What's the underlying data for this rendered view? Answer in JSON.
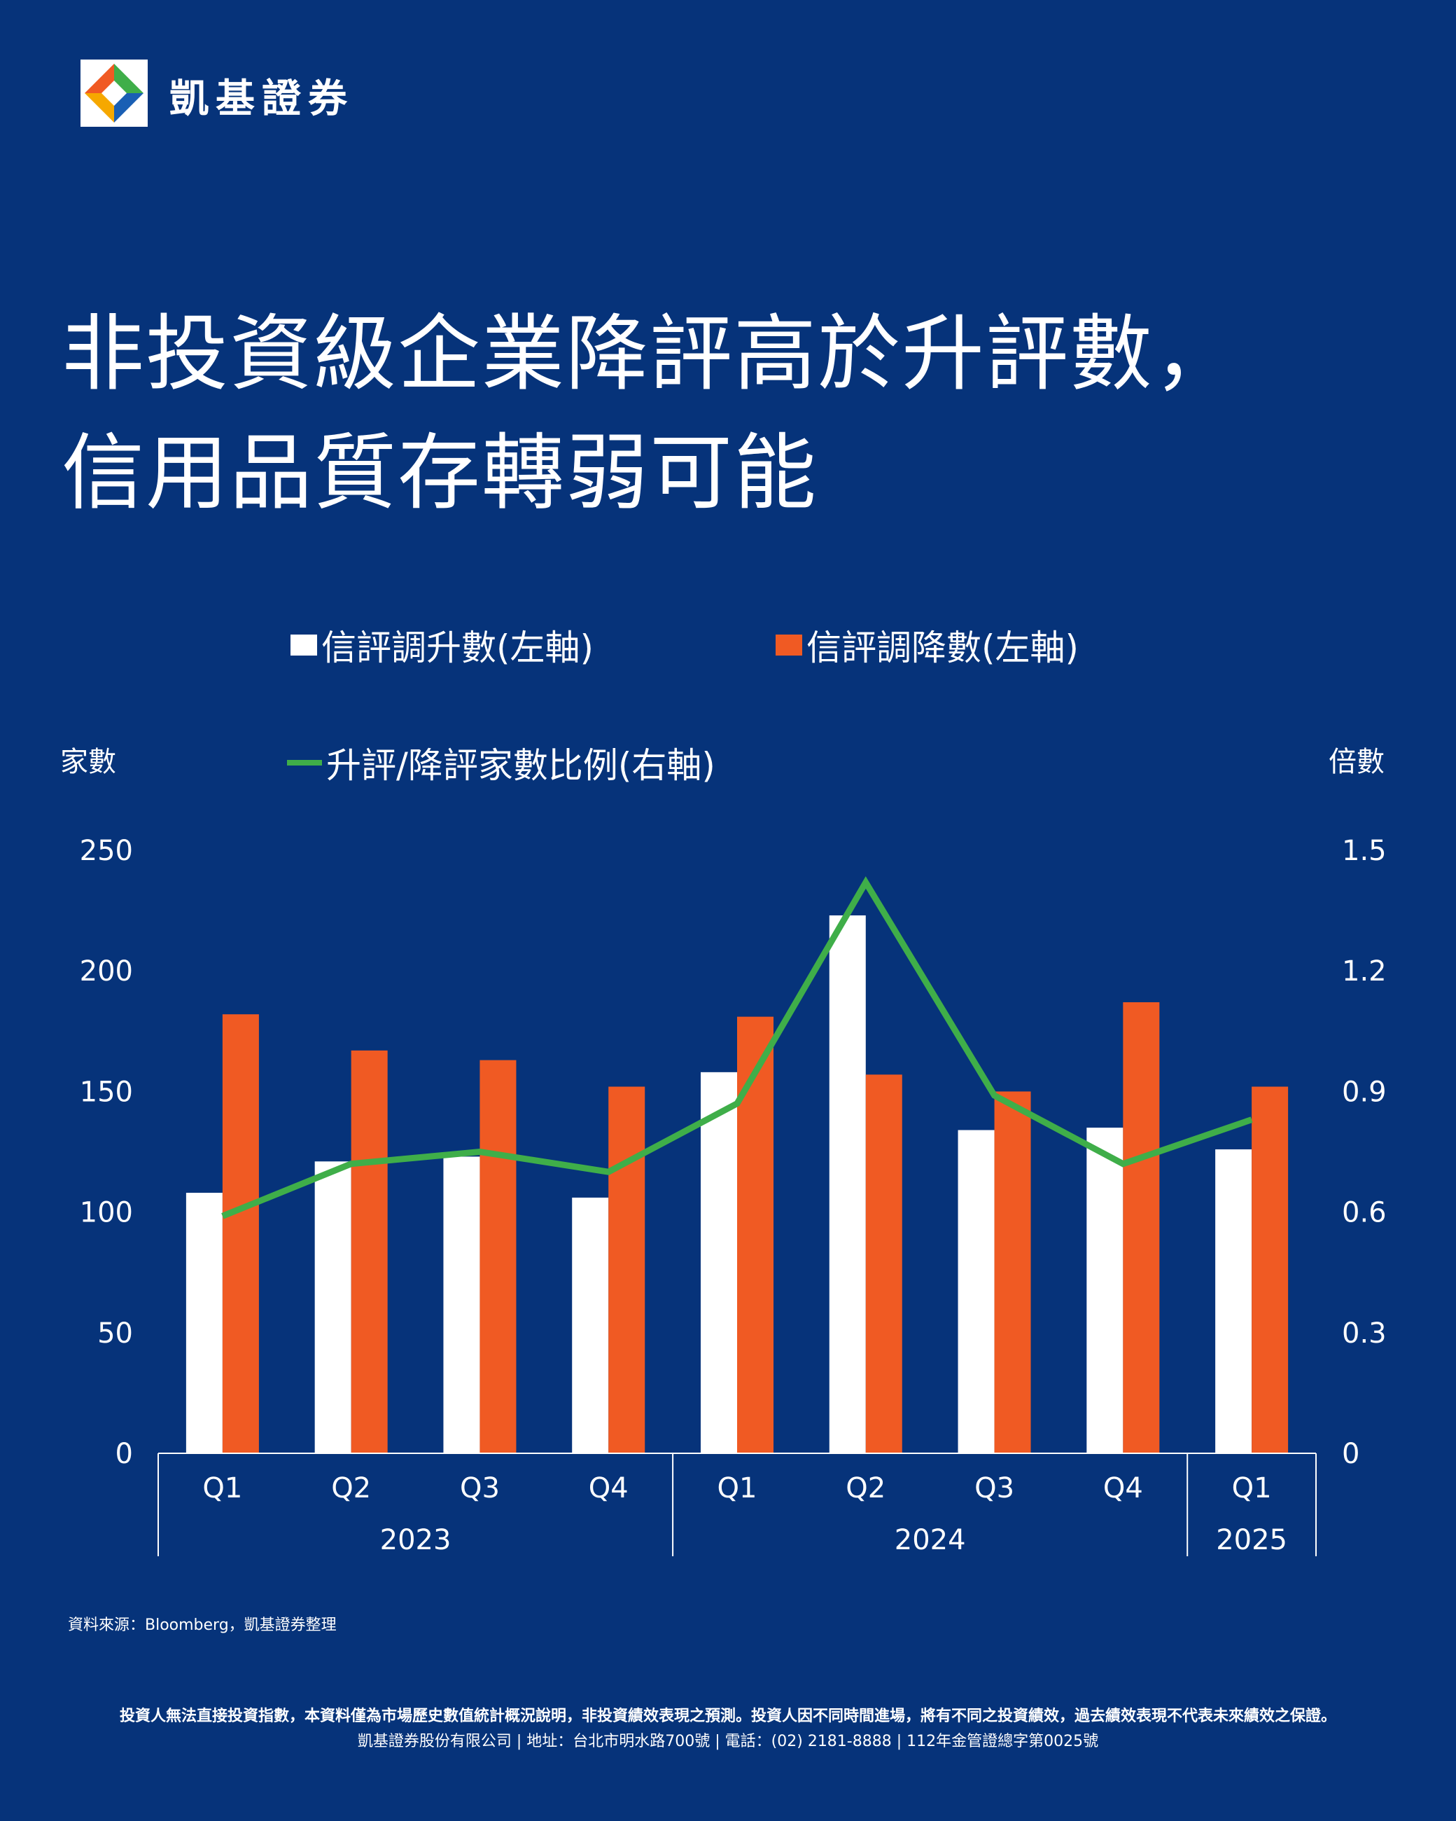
{
  "brand": {
    "name": "凱基證券"
  },
  "title": {
    "line1": "非投資級企業降評高於升評數，",
    "line2": "信用品質存轉弱可能"
  },
  "colors": {
    "background": "#06337a",
    "upgrades": "#ffffff",
    "downgrades": "#f05a23",
    "ratio": "#3fae49"
  },
  "chart_data": {
    "type": "bar",
    "categories": [
      "Q1",
      "Q2",
      "Q3",
      "Q4",
      "Q1",
      "Q2",
      "Q3",
      "Q4",
      "Q1"
    ],
    "groups": [
      {
        "label": "2023",
        "span": 4
      },
      {
        "label": "2024",
        "span": 4
      },
      {
        "label": "2025",
        "span": 1
      }
    ],
    "series": [
      {
        "name": "信評調升數(左軸)",
        "kind": "bar",
        "axis": "left",
        "values": [
          108,
          121,
          123,
          106,
          158,
          223,
          134,
          135,
          126
        ]
      },
      {
        "name": "信評調降數(左軸)",
        "kind": "bar",
        "axis": "left",
        "values": [
          182,
          167,
          163,
          152,
          181,
          157,
          150,
          187,
          152
        ]
      },
      {
        "name": "升評/降評家數比例(右軸)",
        "kind": "line",
        "axis": "right",
        "values": [
          0.59,
          0.72,
          0.75,
          0.7,
          0.87,
          1.42,
          0.89,
          0.72,
          0.83
        ]
      }
    ],
    "y_left": {
      "label": "家數",
      "ticks": [
        "250",
        "200",
        "150",
        "100",
        "50",
        "0"
      ],
      "range": [
        0,
        250
      ]
    },
    "y_right": {
      "label": "倍數",
      "ticks": [
        "1.5",
        "1.2",
        "0.9",
        "0.6",
        "0.3",
        "0"
      ],
      "range": [
        0,
        1.5
      ]
    },
    "grid": false
  },
  "footer": {
    "source": "資料來源：Bloomberg，凱基證券整理",
    "disclaimer": "投資人無法直接投資指數，本資料僅為市場歷史數值統計概況說明，非投資績效表現之預測。投資人因不同時間進場，將有不同之投資績效，過去績效表現不代表未來績效之保證。",
    "company": "凱基證券股份有限公司 | 地址：台北市明水路700號 | 電話：(02) 2181-8888 | 112年金管證總字第0025號"
  }
}
